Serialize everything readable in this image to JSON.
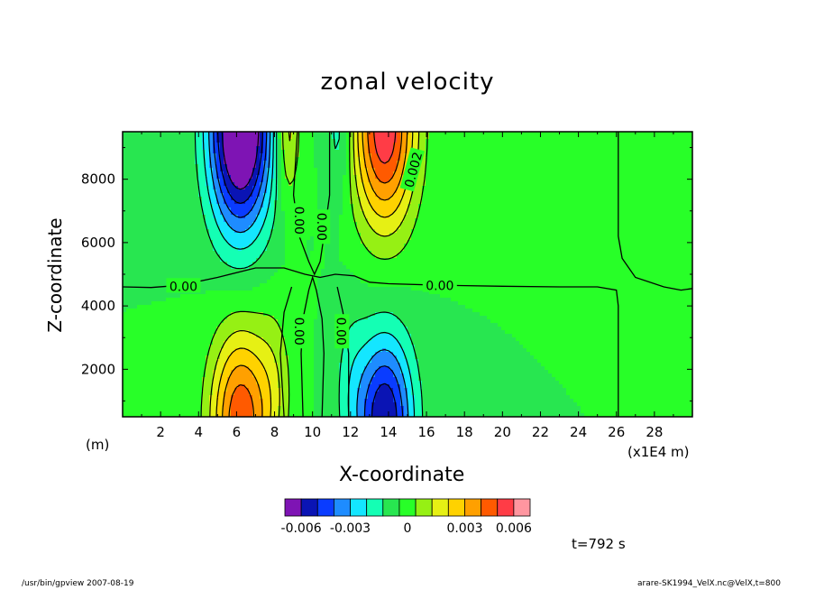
{
  "chart_data": {
    "type": "heatmap",
    "title": "zonal velocity",
    "xlabel": "X-coordinate",
    "ylabel": "Z-coordinate",
    "x_units": "(m)",
    "x_scale_note": "(x1E4 m)",
    "xlim": [
      0,
      30
    ],
    "ylim": [
      500,
      9500
    ],
    "x_ticks": [
      "2",
      "4",
      "6",
      "8",
      "10",
      "12",
      "14",
      "16",
      "18",
      "20",
      "22",
      "24",
      "26",
      "28"
    ],
    "y_ticks": [
      "2000",
      "4000",
      "6000",
      "8000"
    ],
    "colorbar": {
      "levels": [
        -0.007,
        -0.006,
        -0.005,
        -0.004,
        -0.003,
        -0.002,
        -0.001,
        0,
        0.001,
        0.002,
        0.003,
        0.004,
        0.005,
        0.006,
        0.007
      ],
      "colors": [
        "#7e14b4",
        "#0a14b4",
        "#0a3cff",
        "#1e8cff",
        "#14e6ff",
        "#14ffb4",
        "#28e650",
        "#28ff28",
        "#96f014",
        "#e6f014",
        "#ffd200",
        "#ffa000",
        "#ff5a00",
        "#ff3c46",
        "#ff96a0"
      ],
      "tick_labels": [
        "-0.006",
        "-0.003",
        "0",
        "0.003",
        "0.006"
      ]
    },
    "contour_labels": [
      "0.00",
      "0.00",
      "0.00",
      "0.00",
      "0.00",
      "0.00",
      "0.002"
    ],
    "features": [
      {
        "x": 6.2,
        "z": 9200,
        "value": -0.007
      },
      {
        "x": 6.2,
        "z": 1000,
        "value": 0.004
      },
      {
        "x": 13.8,
        "z": 9200,
        "value": 0.006
      },
      {
        "x": 13.8,
        "z": 1000,
        "value": -0.004
      },
      {
        "x": 8.7,
        "z": 8500,
        "value": 0.002
      },
      {
        "x": 11.4,
        "z": 8500,
        "value": -0.0015
      }
    ],
    "grid": false
  },
  "annotations": {
    "time": "t=792 s",
    "footer_left": "/usr/bin/gpview   2007-08-19",
    "footer_right": "arare-SK1994_VelX.nc@VelX,t=800"
  }
}
